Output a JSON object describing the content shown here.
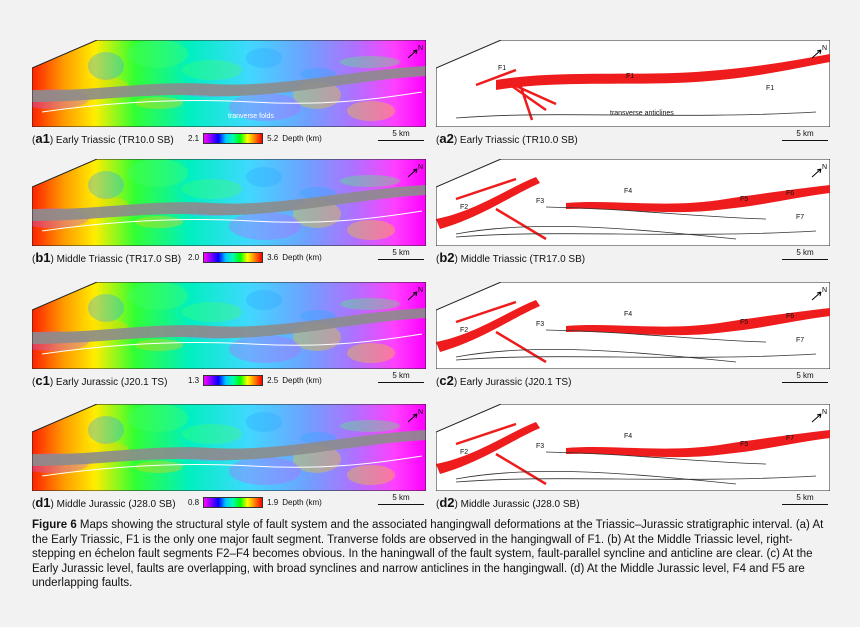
{
  "rows": [
    {
      "left_label": {
        "id": "a1",
        "title": "Early Triassic (TR10.0 SB)"
      },
      "right_label": {
        "id": "a2",
        "title": "Early Triassic (TR10.0 SB)"
      },
      "depth": {
        "min": "2.1",
        "max": "5.2",
        "unit": "Depth (km)"
      },
      "scale": "5 km",
      "map_annotation": "tranverse folds",
      "fault_labels": [
        "F1",
        "F1",
        "F1"
      ],
      "feature_label": "transverse anticlines"
    },
    {
      "left_label": {
        "id": "b1",
        "title": "Middle Triassic (TR17.0 SB)"
      },
      "right_label": {
        "id": "b2",
        "title": "Middle Triassic (TR17.0 SB)"
      },
      "depth": {
        "min": "2.0",
        "max": "3.6",
        "unit": "Depth (km)"
      },
      "scale": "5 km",
      "fault_labels": [
        "F2",
        "F3",
        "F4",
        "F5",
        "F6",
        "F7"
      ]
    },
    {
      "left_label": {
        "id": "c1",
        "title": "Early Jurassic (J20.1 TS)"
      },
      "right_label": {
        "id": "c2",
        "title": "Early Jurassic (J20.1 TS)"
      },
      "depth": {
        "min": "1.3",
        "max": "2.5",
        "unit": "Depth (km)"
      },
      "scale": "5 km",
      "fault_labels": [
        "F2",
        "F3",
        "F4",
        "F5",
        "F6",
        "F7"
      ]
    },
    {
      "left_label": {
        "id": "d1",
        "title": "Middle Jurassic (J28.0 SB)"
      },
      "right_label": {
        "id": "d2",
        "title": "Middle Jurassic (J28.0 SB)"
      },
      "depth": {
        "min": "0.8",
        "max": "1.9",
        "unit": "Depth (km)"
      },
      "scale": "5 km",
      "fault_labels": [
        "F2",
        "F3",
        "F4",
        "F5",
        "F7"
      ]
    }
  ],
  "north": "N",
  "caption": {
    "figure": "Figure 6",
    "text": " Maps showing the structural style of fault system and the associated hangingwall deformations at the Triassic–Jurassic stratigraphic interval. (a) At the Early Triassic, F1 is the only one major fault segment. Tranverse folds are observed in the hangingwall of F1. (b) At the Middle Triassic level, right-stepping en échelon fault segments F2–F4 becomes obvious. In the haningwall of the fault system, fault-parallel syncline and anticline are clear. (c) At the Early Jurassic level, faults are overlapping, with broad synclines and narrow anticlines in the hangingwall. (d) At the Middle Jurassic level, F4 and F5 are underlapping faults."
  },
  "colors": {
    "fault": "#ee1c1c",
    "fault_gray": "#8c8c8c"
  }
}
